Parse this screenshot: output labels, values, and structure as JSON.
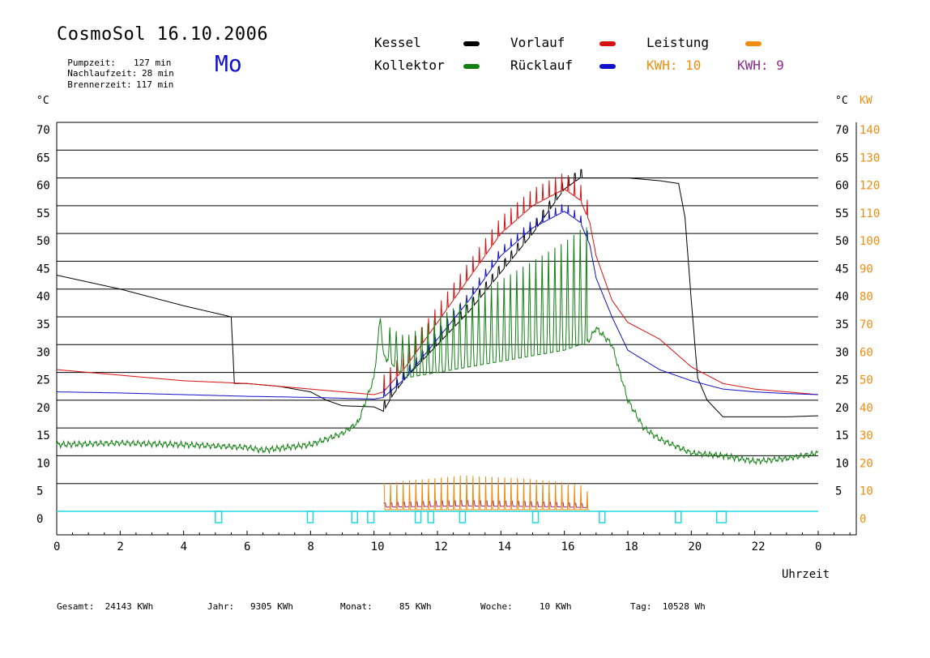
{
  "header": {
    "title": "CosmoSol 16.10.2006",
    "day": "Mo",
    "stats": [
      {
        "label": "Pumpzeit:",
        "value": "127 min"
      },
      {
        "label": "Nachlaufzeit:",
        "value": "28 min"
      },
      {
        "label": "Brennerzeit:",
        "value": "117 min"
      }
    ]
  },
  "legend": {
    "kessel": "Kessel",
    "kollektor": "Kollektor",
    "vorlauf": "Vorlauf",
    "ruecklauf": "Rücklauf",
    "leistung": "Leistung",
    "kwh1": "KWH: 10",
    "kwh2": "KWH: 9"
  },
  "footer": {
    "gesamt": "Gesamt:  24143 KWh",
    "jahr": "Jahr:   9305 KWh",
    "monat": "Monat:     85 KWh",
    "woche": "Woche:     10 KWh",
    "tag": "Tag:  10528 Wh"
  },
  "chart_data": {
    "type": "line",
    "xlabel": "Uhrzeit",
    "ylabel_left": "°C",
    "ylabel_right_temp": "°C",
    "ylabel_right_power": "KW",
    "xlim": [
      0,
      24
    ],
    "ylim": [
      0,
      70
    ],
    "y2lim": [
      0,
      140
    ],
    "x_ticks": [
      "0",
      "2",
      "4",
      "6",
      "8",
      "10",
      "12",
      "14",
      "16",
      "18",
      "20",
      "22",
      "0"
    ],
    "y_ticks": [
      "0",
      "5",
      "10",
      "15",
      "20",
      "25",
      "30",
      "35",
      "40",
      "45",
      "50",
      "55",
      "60",
      "65",
      "70"
    ],
    "y_ticks_right": [
      "5",
      "10",
      "15",
      "20",
      "25",
      "30",
      "35",
      "40",
      "45",
      "50",
      "55",
      "60",
      "65",
      "70"
    ],
    "y2_ticks": [
      "0",
      "10",
      "20",
      "30",
      "40",
      "50",
      "60",
      "70",
      "80",
      "90",
      "100",
      "110",
      "120",
      "130",
      "140"
    ],
    "grid": true,
    "legend_position": "top",
    "colors": {
      "kessel": "#000000",
      "kollektor": "#108010",
      "vorlauf": "#d81010",
      "ruecklauf": "#1010c8",
      "leistung": "#f08c10",
      "kwh2": "#8c2c8c",
      "pump": "#22d8e0"
    },
    "series": [
      {
        "name": "Kessel",
        "x": [
          0,
          2,
          4,
          5.5,
          5.6,
          6,
          7,
          8,
          8.5,
          9,
          10,
          10.3,
          10.6,
          11,
          12,
          13,
          14,
          15,
          15.5,
          16,
          16.5,
          17,
          18,
          19,
          19.6,
          19.8,
          20,
          20.2,
          20.5,
          21,
          22,
          23,
          24
        ],
        "values": [
          42.5,
          40,
          37,
          35,
          23,
          23,
          22.5,
          21.5,
          20,
          19,
          18.8,
          18,
          21,
          24,
          30,
          36,
          43,
          50,
          54,
          58,
          60,
          60,
          60,
          59.5,
          59,
          53,
          38,
          24,
          20,
          17,
          17,
          17,
          17.2
        ]
      },
      {
        "name": "Vorlauf",
        "x": [
          0,
          2,
          4,
          6,
          8,
          10,
          10.3,
          11,
          12,
          13,
          14,
          15,
          16,
          16.5,
          16.8,
          17,
          17.5,
          18,
          19,
          20,
          21,
          22,
          23,
          24
        ],
        "values": [
          25.5,
          24.5,
          23.5,
          23,
          22,
          21,
          21.5,
          26,
          34,
          42,
          50,
          55,
          58,
          56,
          52,
          46,
          38,
          34,
          31,
          26,
          23,
          22,
          21.5,
          21
        ]
      },
      {
        "name": "Rücklauf",
        "x": [
          0,
          2,
          4,
          6,
          8,
          10,
          10.3,
          11,
          12,
          13,
          14,
          15,
          16,
          16.5,
          16.8,
          17,
          17.5,
          18,
          19,
          20,
          21,
          22,
          23,
          24
        ],
        "values": [
          21.5,
          21.3,
          21,
          20.7,
          20.5,
          20.2,
          20.5,
          24,
          31,
          38,
          46,
          51,
          54,
          52,
          48,
          42,
          35,
          29,
          25.5,
          23.5,
          22,
          21.5,
          21.2,
          21
        ]
      },
      {
        "name": "Kollektor",
        "x": [
          0,
          2,
          4,
          6,
          6.5,
          8,
          9,
          9.5,
          10,
          10.2,
          10.3,
          11,
          12,
          13,
          14,
          15,
          16,
          16.5,
          16.7,
          17,
          17.5,
          18,
          18.5,
          19,
          20,
          21,
          22,
          23,
          24
        ],
        "values": [
          12,
          12.3,
          12,
          11.5,
          11,
          12,
          14,
          16,
          24,
          35,
          28,
          24,
          25,
          26,
          27,
          28,
          29,
          30,
          30,
          33,
          30,
          20,
          15,
          13,
          10.5,
          10,
          9,
          9.5,
          10.5
        ]
      },
      {
        "name": "Leistung",
        "x": [
          10.3,
          11,
          12,
          12.8,
          13.5,
          14.5,
          15.5,
          16,
          16.7,
          16.8
        ],
        "values": [
          10,
          11,
          12,
          13,
          12.5,
          12,
          11,
          10.5,
          9,
          0
        ]
      }
    ],
    "pump_runs": [
      [
        5,
        5.2
      ],
      [
        7.9,
        8.0
      ],
      [
        9.3,
        9.4
      ],
      [
        9.8,
        10.0
      ],
      [
        11.3,
        11.4
      ],
      [
        11.7,
        11.8
      ],
      [
        12.7,
        12.8
      ],
      [
        15.0,
        15.1
      ],
      [
        17.1,
        17.2
      ],
      [
        19.5,
        19.6
      ],
      [
        20.8,
        21.1
      ]
    ]
  }
}
